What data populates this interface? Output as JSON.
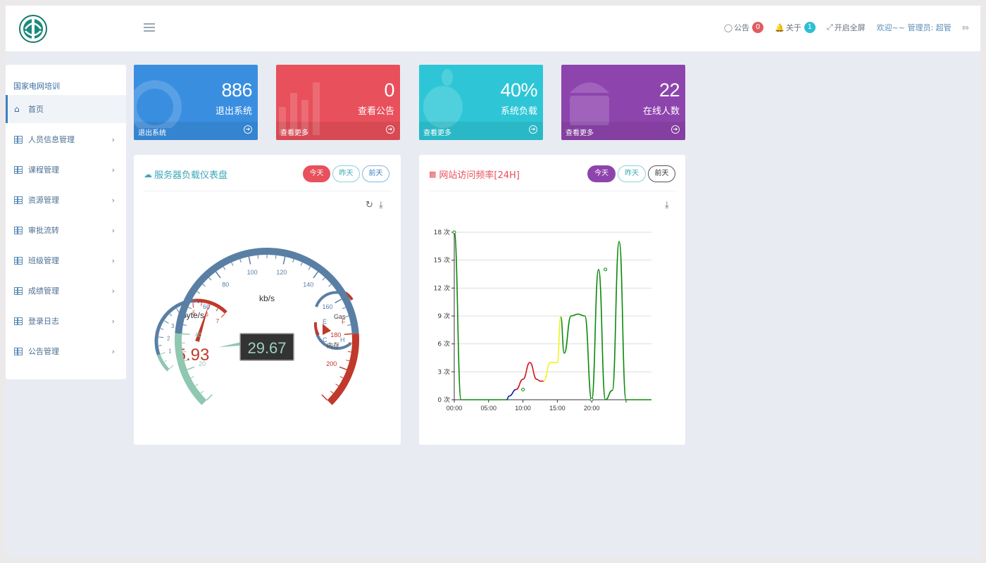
{
  "header": {
    "announcement_label": "公告",
    "announcement_count": "0",
    "about_label": "关于",
    "about_count": "1",
    "fullscreen_label": "开启全屏",
    "welcome_text": "欢迎~~ 管理员: 超管"
  },
  "sidebar": {
    "title": "国家电网培训",
    "items": [
      {
        "label": "首页"
      },
      {
        "label": "人员信息管理"
      },
      {
        "label": "课程管理"
      },
      {
        "label": "资源管理"
      },
      {
        "label": "审批流转"
      },
      {
        "label": "班级管理"
      },
      {
        "label": "成绩管理"
      },
      {
        "label": "登录日志"
      },
      {
        "label": "公告管理"
      }
    ]
  },
  "cards": [
    {
      "value": "886",
      "label": "退出系统",
      "footer": "退出系统",
      "color": "#3a8ee0"
    },
    {
      "value": "0",
      "label": "查看公告",
      "footer": "查看更多",
      "color": "#e8505b"
    },
    {
      "value": "40%",
      "label": "系统负载",
      "footer": "查看更多",
      "color": "#2ec6d6"
    },
    {
      "value": "22",
      "label": "在线人数",
      "footer": "查看更多",
      "color": "#8e44ad"
    }
  ],
  "gauge_panel": {
    "title": "服务器负载仪表盘",
    "tabs": [
      "今天",
      "昨天",
      "前天"
    ],
    "gauges": {
      "left": {
        "unit": "byte/s",
        "value": "5.93",
        "value_num": 5.93,
        "ticks": [
          "1",
          "2",
          "3",
          "4",
          "5",
          "6",
          "7"
        ]
      },
      "center": {
        "unit": "kb/s",
        "value": "29.67",
        "value_num": 29.67,
        "ticks": [
          "20",
          "40",
          "60",
          "80",
          "100",
          "120",
          "140",
          "160",
          "180",
          "200"
        ]
      },
      "right_top": {
        "label": "Gas",
        "ticks": [
          "E",
          "F"
        ]
      },
      "right_bottom": {
        "label": "内存",
        "ticks": [
          "C",
          "H"
        ]
      }
    }
  },
  "freq_panel": {
    "title": "网站访问频率[24H]",
    "tabs": [
      "今天",
      "昨天",
      "前天"
    ]
  },
  "chart_data": {
    "type": "line",
    "title": "网站访问频率[24H]",
    "xlabel": "",
    "ylabel": "",
    "x_tick_labels": [
      "00:00",
      "05:00",
      "10:00",
      "15:00",
      "20:00"
    ],
    "y_tick_labels": [
      "0 次",
      "3 次",
      "6 次",
      "9 次",
      "12 次",
      "15 次",
      "18 次"
    ],
    "ylim": [
      0,
      18
    ],
    "xlim": [
      0,
      28.7
    ],
    "series": [
      {
        "x": [
          0,
          1,
          2,
          3,
          4,
          5,
          6,
          7,
          7.6,
          8,
          9,
          10,
          11,
          12,
          12.5,
          13,
          14,
          15,
          15.5,
          16,
          17,
          18,
          19,
          20,
          21,
          22,
          23,
          24,
          25,
          26,
          27,
          28,
          28.7
        ],
        "y": [
          18,
          0,
          0,
          0,
          0,
          0,
          0,
          0,
          0,
          0.4,
          1.1,
          2.2,
          4.0,
          2.2,
          2.0,
          2.0,
          4.0,
          4.0,
          8.9,
          5.0,
          9.0,
          9.2,
          9.0,
          0,
          14.0,
          0,
          1.0,
          17.0,
          0,
          0,
          0,
          0,
          0
        ]
      }
    ],
    "grid": true
  },
  "colors": {
    "accent_blue": "#3b7fc4",
    "gauge_blue": "#5a7fa5",
    "gauge_red": "#c0392b",
    "gauge_green": "#8fc7b0",
    "line_green": "#0b8a0b",
    "line_blue": "#0a1fa5",
    "line_red": "#d0141d",
    "line_yellow": "#f3f31a",
    "pill_red": "#e8505b",
    "pill_purple": "#8e44ad",
    "pill_teal": "#3aa8b8"
  }
}
